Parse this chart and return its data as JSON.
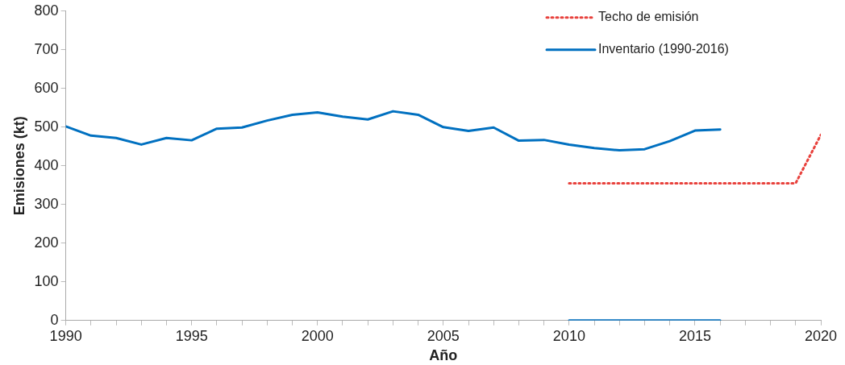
{
  "chart_data": {
    "type": "line",
    "xlabel": "Año",
    "ylabel": "Emisiones (kt)",
    "xlim": [
      1990,
      2020
    ],
    "xticks": [
      1990,
      {
        "value": 1991,
        "label": null
      },
      {
        "value": 1992,
        "label": null
      },
      {
        "value": 1993,
        "label": null
      },
      {
        "value": 1994,
        "label": null
      },
      1995,
      {
        "value": 1996,
        "label": null
      },
      {
        "value": 1997,
        "label": null
      },
      {
        "value": 1998,
        "label": null
      },
      {
        "value": 1999,
        "label": null
      },
      2000,
      {
        "value": 2001,
        "label": null
      },
      {
        "value": 2002,
        "label": null
      },
      {
        "value": 2003,
        "label": null
      },
      {
        "value": 2004,
        "label": null
      },
      2005,
      {
        "value": 2006,
        "label": null
      },
      {
        "value": 2007,
        "label": null
      },
      {
        "value": 2008,
        "label": null
      },
      {
        "value": 2009,
        "label": null
      },
      2010,
      {
        "value": 2011,
        "label": null
      },
      {
        "value": 2012,
        "label": null
      },
      {
        "value": 2013,
        "label": null
      },
      {
        "value": 2014,
        "label": null
      },
      2015,
      {
        "value": 2016,
        "label": null
      },
      {
        "value": 2017,
        "label": null
      },
      {
        "value": 2018,
        "label": null
      },
      {
        "value": 2019,
        "label": null
      },
      2020
    ],
    "ylim": [
      0,
      800
    ],
    "yticks": [
      0,
      100,
      200,
      300,
      400,
      500,
      600,
      700,
      800
    ],
    "grid": false,
    "legend": "top right",
    "marker": "none",
    "series": [
      {
        "name": "Techo de emisión",
        "color": "#e8413c",
        "line_style": "dotted",
        "x": [
          2010,
          2011,
          2012,
          2013,
          2014,
          2015,
          2016,
          2017,
          2018,
          2019,
          2020
        ],
        "values": [
          355,
          355,
          355,
          355,
          355,
          355,
          355,
          355,
          355,
          355,
          480
        ]
      },
      {
        "name": "Inventario (1990-2016)",
        "color": "#0070c0",
        "line_style": "solid",
        "x": [
          1990,
          1991,
          1992,
          1993,
          1994,
          1995,
          1996,
          1997,
          1998,
          1999,
          2000,
          2001,
          2002,
          2003,
          2004,
          2005,
          2006,
          2007,
          2008,
          2009,
          2010,
          2011,
          2012,
          2013,
          2014,
          2015,
          2016
        ],
        "values": [
          502,
          478,
          472,
          455,
          472,
          466,
          496,
          499,
          517,
          532,
          538,
          527,
          520,
          541,
          532,
          500,
          490,
          499,
          465,
          467,
          455,
          446,
          440,
          443,
          464,
          491,
          494
        ]
      },
      {
        "color": "#0070c0",
        "line_style": "solid",
        "x": [
          2010,
          2011,
          2012,
          2013,
          2014,
          2015,
          2016
        ],
        "values": [
          0,
          0,
          0,
          0,
          0,
          0,
          0
        ]
      }
    ]
  }
}
